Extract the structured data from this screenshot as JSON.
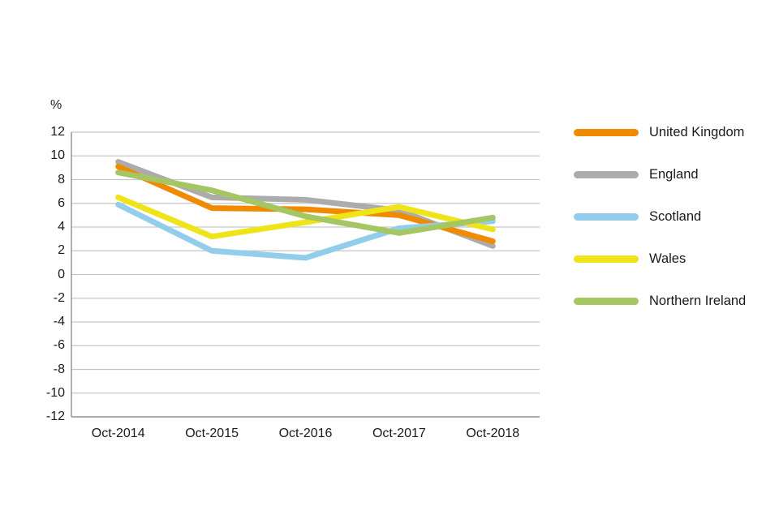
{
  "chart_data": {
    "type": "line",
    "title": "",
    "xlabel": "",
    "ylabel": "%",
    "categories": [
      "Oct-2014",
      "Oct-2015",
      "Oct-2016",
      "Oct-2017",
      "Oct-2018"
    ],
    "series": [
      {
        "name": "United Kingdom",
        "color": "#F08A00",
        "values": [
          9.1,
          5.6,
          5.5,
          5.0,
          2.8
        ]
      },
      {
        "name": "England",
        "color": "#ACACAC",
        "values": [
          9.5,
          6.5,
          6.3,
          5.4,
          2.4
        ]
      },
      {
        "name": "Scotland",
        "color": "#92CEEB",
        "values": [
          5.9,
          2.0,
          1.4,
          3.9,
          4.5
        ]
      },
      {
        "name": "Wales",
        "color": "#EFE419",
        "values": [
          6.5,
          3.2,
          4.4,
          5.7,
          3.8
        ]
      },
      {
        "name": "Northern Ireland",
        "color": "#A5C763",
        "values": [
          8.6,
          7.1,
          4.9,
          3.5,
          4.8
        ]
      }
    ],
    "y_axis": {
      "unit_label": "%",
      "min": -12,
      "max": 12,
      "step": 2,
      "ticks": [
        12,
        10,
        8,
        6,
        4,
        2,
        0,
        -2,
        -4,
        -6,
        -8,
        -10,
        -12
      ]
    },
    "grid": true,
    "legend_position": "right",
    "draw_order": [
      "England",
      "United Kingdom",
      "Scotland",
      "Wales",
      "Northern Ireland"
    ],
    "colors": {
      "text": "#1a1a1a",
      "gridline": "#c6c6c6",
      "axis": "#8f8f8f",
      "background": "#ffffff"
    }
  }
}
